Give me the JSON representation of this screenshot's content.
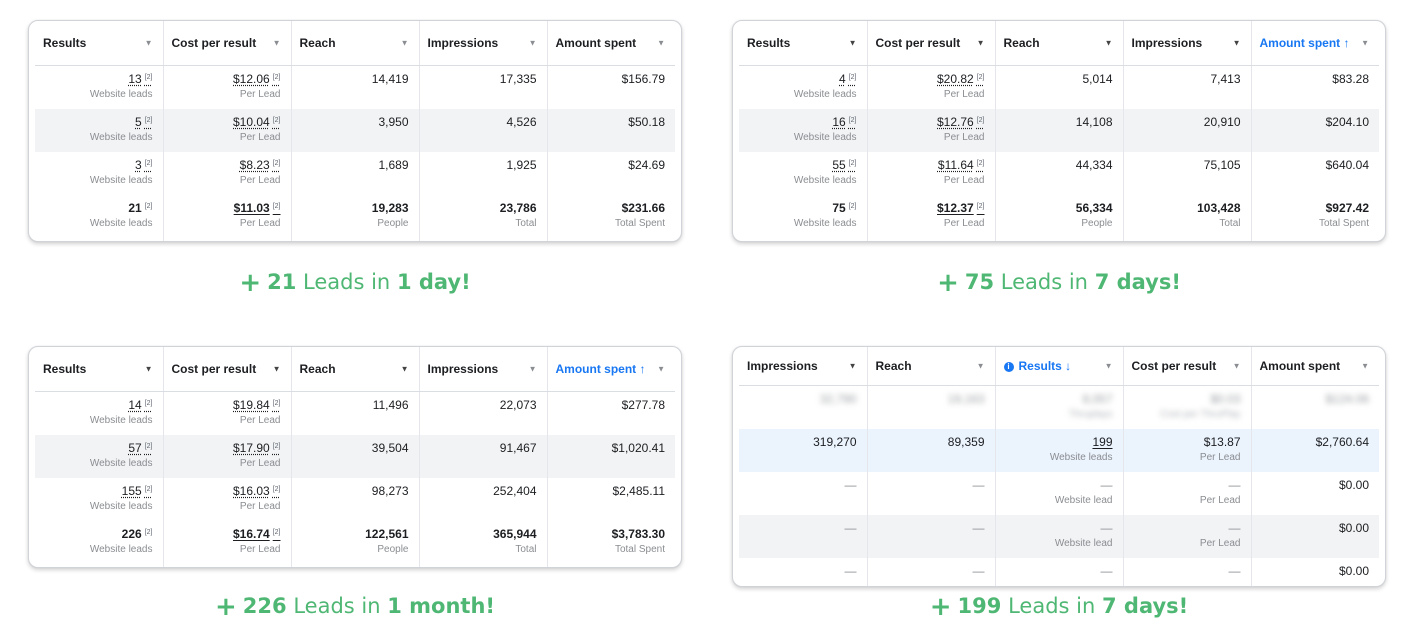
{
  "panels": [
    {
      "headers": [
        {
          "label": "Results",
          "sorted": false
        },
        {
          "label": "Cost per result",
          "sorted": false
        },
        {
          "label": "Reach",
          "sorted": false
        },
        {
          "label": "Impressions",
          "sorted": false
        },
        {
          "label": "Amount spent",
          "sorted": false
        }
      ],
      "rows": [
        {
          "results": "13",
          "results_sub": "Website leads",
          "cost": "$12.06",
          "cost_sub": "Per Lead",
          "reach": "14,419",
          "impressions": "17,335",
          "spent": "$156.79"
        },
        {
          "results": "5",
          "results_sub": "Website leads",
          "cost": "$10.04",
          "cost_sub": "Per Lead",
          "reach": "3,950",
          "impressions": "4,526",
          "spent": "$50.18"
        },
        {
          "results": "3",
          "results_sub": "Website leads",
          "cost": "$8.23",
          "cost_sub": "Per Lead",
          "reach": "1,689",
          "impressions": "1,925",
          "spent": "$24.69"
        }
      ],
      "total": {
        "results": "21",
        "results_sub": "Website leads",
        "cost": "$11.03",
        "cost_sub": "Per Lead",
        "reach": "19,283",
        "reach_sub": "People",
        "impressions": "23,786",
        "impressions_sub": "Total",
        "spent": "$231.66",
        "spent_sub": "Total Spent"
      },
      "caption": {
        "count": "21",
        "mid": "Leads in",
        "period": "1 day!"
      }
    },
    {
      "headers": [
        {
          "label": "Results",
          "sorted": false
        },
        {
          "label": "Cost per result",
          "sorted": false
        },
        {
          "label": "Reach",
          "sorted": false
        },
        {
          "label": "Impressions",
          "sorted": false
        },
        {
          "label": "Amount spent ↑",
          "sorted": true
        }
      ],
      "rows": [
        {
          "results": "4",
          "results_sub": "Website leads",
          "cost": "$20.82",
          "cost_sub": "Per Lead",
          "reach": "5,014",
          "impressions": "7,413",
          "spent": "$83.28"
        },
        {
          "results": "16",
          "results_sub": "Website leads",
          "cost": "$12.76",
          "cost_sub": "Per Lead",
          "reach": "14,108",
          "impressions": "20,910",
          "spent": "$204.10"
        },
        {
          "results": "55",
          "results_sub": "Website leads",
          "cost": "$11.64",
          "cost_sub": "Per Lead",
          "reach": "44,334",
          "impressions": "75,105",
          "spent": "$640.04"
        }
      ],
      "total": {
        "results": "75",
        "results_sub": "Website leads",
        "cost": "$12.37",
        "cost_sub": "Per Lead",
        "reach": "56,334",
        "reach_sub": "People",
        "impressions": "103,428",
        "impressions_sub": "Total",
        "spent": "$927.42",
        "spent_sub": "Total Spent"
      },
      "caption": {
        "count": "75",
        "mid": "Leads in",
        "period": "7 days!"
      }
    },
    {
      "headers": [
        {
          "label": "Results",
          "sorted": false
        },
        {
          "label": "Cost per result",
          "sorted": false
        },
        {
          "label": "Reach",
          "sorted": false
        },
        {
          "label": "Impressions",
          "sorted": false
        },
        {
          "label": "Amount spent ↑",
          "sorted": true
        }
      ],
      "rows": [
        {
          "results": "14",
          "results_sub": "Website leads",
          "cost": "$19.84",
          "cost_sub": "Per Lead",
          "reach": "11,496",
          "impressions": "22,073",
          "spent": "$277.78"
        },
        {
          "results": "57",
          "results_sub": "Website leads",
          "cost": "$17.90",
          "cost_sub": "Per Lead",
          "reach": "39,504",
          "impressions": "91,467",
          "spent": "$1,020.41"
        },
        {
          "results": "155",
          "results_sub": "Website leads",
          "cost": "$16.03",
          "cost_sub": "Per Lead",
          "reach": "98,273",
          "impressions": "252,404",
          "spent": "$2,485.11"
        }
      ],
      "total": {
        "results": "226",
        "results_sub": "Website leads",
        "cost": "$16.74",
        "cost_sub": "Per Lead",
        "reach": "122,561",
        "reach_sub": "People",
        "impressions": "365,944",
        "impressions_sub": "Total",
        "spent": "$3,783.30",
        "spent_sub": "Total Spent"
      },
      "caption": {
        "count": "226",
        "mid": "Leads in",
        "period": "1 month!"
      }
    },
    {
      "headers": [
        {
          "label": "Impressions",
          "sorted": false
        },
        {
          "label": "Reach",
          "sorted": false
        },
        {
          "label": "Results ↓",
          "sorted": true
        },
        {
          "label": "Cost per result",
          "sorted": false
        },
        {
          "label": "Amount spent",
          "sorted": false
        }
      ],
      "blurred_row": {
        "impressions": "32,790",
        "reach": "19,163",
        "results": "8,057",
        "results_sub": "Thruplays",
        "cost": "$0.03",
        "cost_sub": "Cost per ThruPlay",
        "spent": "$124.06"
      },
      "highlight_row": {
        "impressions": "319,270",
        "reach": "89,359",
        "results": "199",
        "results_sub": "Website leads",
        "cost": "$13.87",
        "cost_sub": "Per Lead",
        "spent": "$2,760.64"
      },
      "empty_rows": [
        {
          "dash": "—",
          "results_sub": "Website lead",
          "cost_sub": "Per Lead",
          "spent": "$0.00"
        },
        {
          "dash": "—",
          "results_sub": "Website lead",
          "cost_sub": "Per Lead",
          "spent": "$0.00"
        },
        {
          "dash": "—",
          "spent": "$0.00"
        }
      ],
      "caption": {
        "count": "199",
        "mid": "Leads in",
        "period": "7 days!"
      }
    }
  ],
  "footnote_mark": "[2]",
  "plus_symbol": "+"
}
